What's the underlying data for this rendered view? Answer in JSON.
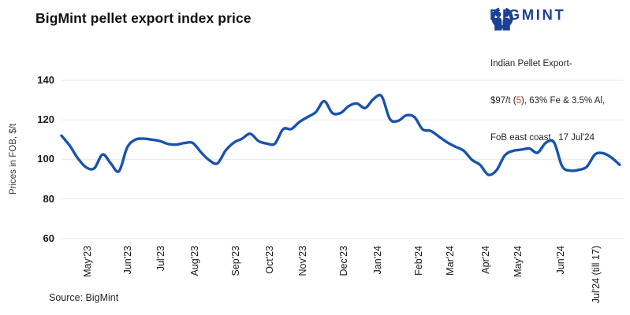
{
  "title": "BigMint pellet export index price",
  "logo": {
    "brand": "BIGMINT",
    "color": "#1b4197"
  },
  "annotation": {
    "line1": "Indian Pellet Export-",
    "line2_pre": "$97/t (",
    "line2_change": "5",
    "line2_post": "), 63% Fe & 3.5% Al,",
    "line3": "FoB east coast,  17 Jul'24",
    "change_color": "#e8402a"
  },
  "source": "Source: BigMint",
  "chart_data": {
    "type": "line",
    "title": "BigMint pellet export index price",
    "ylabel": "Prices in FOB, $/t",
    "xlabel": "",
    "ylim": [
      60,
      140
    ],
    "yticks": [
      140,
      120,
      100,
      80,
      60
    ],
    "grid": "horizontal-only",
    "legend": "none",
    "frequency": "weekly",
    "period": "late Apr'23 to 17 Jul'24",
    "line_color": "#1a53ad",
    "grid_color": "#e8e8e8",
    "latest_value": 97,
    "latest_change": -5,
    "x_ticks": [
      {
        "label": "May'23",
        "week": 3.3
      },
      {
        "label": "Jun'23",
        "week": 8.2
      },
      {
        "label": "Jul'23",
        "week": 12.2
      },
      {
        "label": "Aug'23",
        "week": 16.3
      },
      {
        "label": "Sep'23",
        "week": 21.3
      },
      {
        "label": "Oct'23",
        "week": 25.5
      },
      {
        "label": "Nov'23",
        "week": 29.5
      },
      {
        "label": "Dec'23",
        "week": 34.5
      },
      {
        "label": "Jan'24",
        "week": 38.6
      },
      {
        "label": "Feb'24",
        "week": 43.6
      },
      {
        "label": "Mar'24",
        "week": 47.5
      },
      {
        "label": "Apr'24",
        "week": 51.8
      },
      {
        "label": "May'24",
        "week": 55.7
      },
      {
        "label": "Jun'24",
        "week": 60.9
      },
      {
        "label": "Jul'24 (till 17)",
        "week": 65.2
      }
    ],
    "values": [
      112,
      107,
      100.5,
      96,
      95.5,
      102.5,
      98,
      94,
      106,
      110,
      110.5,
      110,
      109.3,
      107.8,
      107.5,
      108.3,
      108.3,
      103.6,
      99.6,
      98,
      104.5,
      108.5,
      110.5,
      113,
      109.3,
      108,
      108,
      115.3,
      115.4,
      119,
      121.5,
      124,
      129.5,
      123.5,
      123.5,
      127,
      128.3,
      126,
      130.5,
      132,
      120.5,
      119.5,
      122.3,
      121.4,
      115.2,
      114.4,
      111.5,
      108.6,
      106.4,
      104.4,
      99.8,
      97.2,
      92.2,
      94.5,
      102,
      104.3,
      104.9,
      105.5,
      103.4,
      108.4,
      108.6,
      96.5,
      94.3,
      94.7,
      96.3,
      102.5,
      103.1,
      100.9,
      97.3
    ]
  }
}
